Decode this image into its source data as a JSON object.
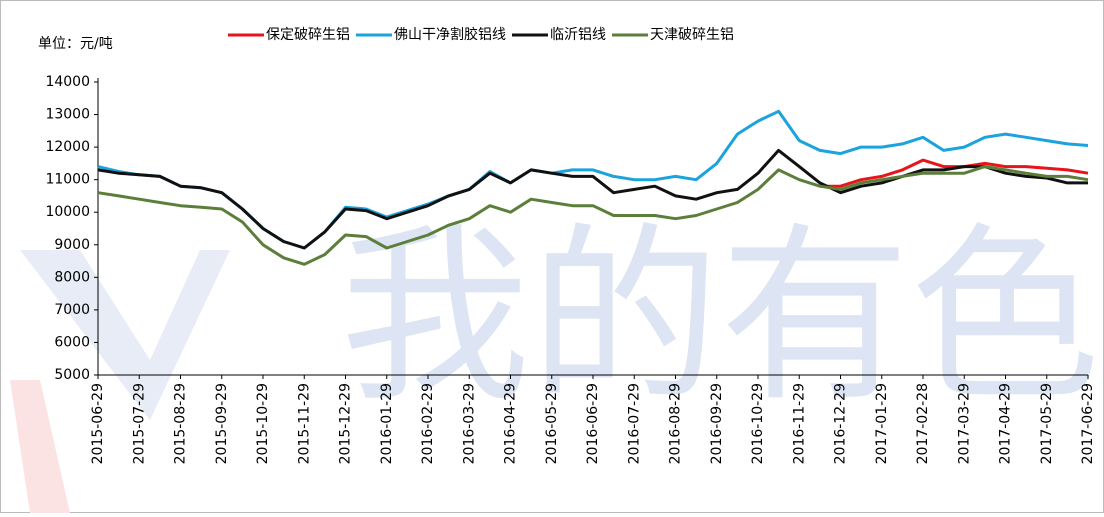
{
  "chart_data": {
    "type": "line",
    "unit_label": "单位：元/吨",
    "watermark": "我的有色",
    "categories": [
      "2015-06-29",
      null,
      "2015-07-29",
      null,
      "2015-08-29",
      null,
      "2015-09-29",
      null,
      "2015-10-29",
      null,
      "2015-11-29",
      null,
      "2015-12-29",
      null,
      "2016-01-29",
      null,
      "2016-02-29",
      null,
      "2016-03-29",
      null,
      "2016-04-29",
      null,
      "2016-05-29",
      null,
      "2016-06-29",
      null,
      "2016-07-29",
      null,
      "2016-08-29",
      null,
      "2016-09-29",
      null,
      "2016-10-29",
      null,
      "2016-11-29",
      null,
      "2016-12-29",
      null,
      "2017-01-29",
      null,
      "2017-02-28",
      null,
      "2017-03-29",
      null,
      "2017-04-29",
      null,
      "2017-05-29",
      null,
      "2017-06-29"
    ],
    "series": [
      {
        "name": "保定破碎生铝",
        "color": "#e8141c",
        "values": [
          null,
          null,
          null,
          null,
          null,
          null,
          null,
          null,
          null,
          null,
          null,
          null,
          null,
          null,
          null,
          null,
          null,
          null,
          null,
          null,
          null,
          null,
          null,
          null,
          null,
          null,
          null,
          null,
          null,
          null,
          null,
          null,
          null,
          null,
          null,
          10800,
          10800,
          11000,
          11100,
          11300,
          11600,
          11400,
          11400,
          11500,
          11400,
          11400,
          11350,
          11300,
          11200
        ]
      },
      {
        "name": "佛山干净割胶铝线",
        "color": "#1aa3dc",
        "values": [
          11400,
          11250,
          11150,
          11100,
          10800,
          10750,
          10600,
          10100,
          9500,
          9100,
          8900,
          9400,
          10150,
          10100,
          9850,
          10050,
          10250,
          10500,
          10700,
          11250,
          10900,
          11300,
          11200,
          11300,
          11300,
          11100,
          11000,
          11000,
          11100,
          11000,
          11500,
          12400,
          12800,
          13100,
          12200,
          11900,
          11800,
          12000,
          12000,
          12100,
          12300,
          11900,
          12000,
          12300,
          12400,
          12300,
          12200,
          12100,
          12050
        ]
      },
      {
        "name": "临沂铝线",
        "color": "#111111",
        "values": [
          11300,
          11200,
          11150,
          11100,
          10800,
          10750,
          10600,
          10100,
          9500,
          9100,
          8900,
          9400,
          10100,
          10050,
          9800,
          10000,
          10200,
          10500,
          10700,
          11200,
          10900,
          11300,
          11200,
          11100,
          11100,
          10600,
          10700,
          10800,
          10500,
          10400,
          10600,
          10700,
          11200,
          11900,
          11400,
          10900,
          10600,
          10800,
          10900,
          11100,
          11300,
          11300,
          11400,
          11400,
          11200,
          11100,
          11050,
          10900,
          10900
        ]
      },
      {
        "name": "天津破碎生铝",
        "color": "#5b7f3a",
        "values": [
          10600,
          10500,
          10400,
          10300,
          10200,
          10150,
          10100,
          9700,
          9000,
          8600,
          8400,
          8700,
          9300,
          9250,
          8900,
          9100,
          9300,
          9600,
          9800,
          10200,
          10000,
          10400,
          10300,
          10200,
          10200,
          9900,
          9900,
          9900,
          9800,
          9900,
          10100,
          10300,
          10700,
          11300,
          11000,
          10800,
          10700,
          10900,
          11000,
          11100,
          11200,
          11200,
          11200,
          11400,
          11300,
          11200,
          11100,
          11100,
          11000
        ]
      }
    ],
    "ylim": [
      5000,
      14000
    ],
    "yticks": [
      5000,
      6000,
      7000,
      8000,
      9000,
      10000,
      11000,
      12000,
      13000,
      14000
    ],
    "grid": false
  }
}
